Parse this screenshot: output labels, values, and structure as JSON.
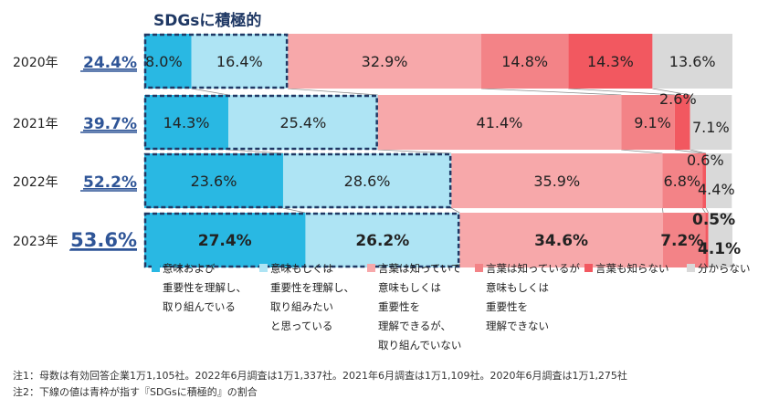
{
  "chart_data": {
    "type": "bar",
    "orientation": "horizontal",
    "stacked": true,
    "percent_stacked": true,
    "title": "SDGsに積極的",
    "categories": [
      "2020年",
      "2021年",
      "2022年",
      "2023年"
    ],
    "highlight_values": [
      "24.4%",
      "39.7%",
      "52.2%",
      "53.6%"
    ],
    "series": [
      {
        "name": "意味および重要性を理解し、取り組んでいる",
        "color": "#29b8e3",
        "values": [
          8.0,
          14.3,
          23.6,
          27.4
        ]
      },
      {
        "name": "意味もしくは重要性を理解し、取り組みたいと思っている",
        "color": "#aee4f4",
        "values": [
          16.4,
          25.4,
          28.6,
          26.2
        ]
      },
      {
        "name": "言葉は知っていて意味もしくは重要性を理解できるが、取り組んでいない",
        "color": "#f7a8aa",
        "values": [
          32.9,
          41.4,
          35.9,
          34.6
        ]
      },
      {
        "name": "言葉は知っているが意味もしくは重要性を理解できない",
        "color": "#f38387",
        "values": [
          14.8,
          9.1,
          6.8,
          7.2
        ]
      },
      {
        "name": "言葉も知らない",
        "color": "#f25860",
        "values": [
          14.3,
          2.6,
          0.6,
          0.5
        ]
      },
      {
        "name": "分からない",
        "color": "#d9d9d9",
        "values": [
          13.6,
          7.1,
          4.4,
          4.1
        ]
      }
    ],
    "data_labels": [
      [
        "8.0%",
        "16.4%",
        "32.9%",
        "14.8%",
        "14.3%",
        "13.6%"
      ],
      [
        "14.3%",
        "25.4%",
        "41.4%",
        "9.1%",
        "2.6%",
        "7.1%"
      ],
      [
        "23.6%",
        "28.6%",
        "35.9%",
        "6.8%",
        "0.6%",
        "4.4%"
      ],
      [
        "27.4%",
        "26.2%",
        "34.6%",
        "7.2%",
        "0.5%",
        "4.1%"
      ]
    ],
    "legend": [
      {
        "lines": [
          "意味および",
          "重要性を理解し、",
          "取り組んでいる"
        ],
        "color": "#29b8e3"
      },
      {
        "lines": [
          "意味もしくは",
          "重要性を理解し、",
          "取り組みたい",
          "と思っている"
        ],
        "color": "#aee4f4"
      },
      {
        "lines": [
          "言葉は知っていて",
          "意味もしくは",
          "重要性を",
          "理解できるが、",
          "取り組んでいない"
        ],
        "color": "#f7a8aa"
      },
      {
        "lines": [
          "言葉は知っているが",
          "意味もしくは",
          "重要性を",
          "理解できない"
        ],
        "color": "#f38387"
      },
      {
        "lines": [
          "言葉も知らない"
        ],
        "color": "#f25860"
      },
      {
        "lines": [
          "分からない"
        ],
        "color": "#d9d9d9"
      }
    ],
    "legend_position": "bottom",
    "xlim": [
      0,
      100
    ]
  },
  "notes": [
    "注1：母数は有効回答企業1万1,105社。2022年6月調査は1万1,337社。2021年6月調査は1万1,109社。2020年6月調査は1万1,275社",
    "注2：下線の値は青枠が指す『SDGsに積極的』の割合"
  ],
  "colors": {
    "highlight_border": "#1f3864",
    "highlight_text": "#2f5597",
    "title": "#1f3864"
  }
}
